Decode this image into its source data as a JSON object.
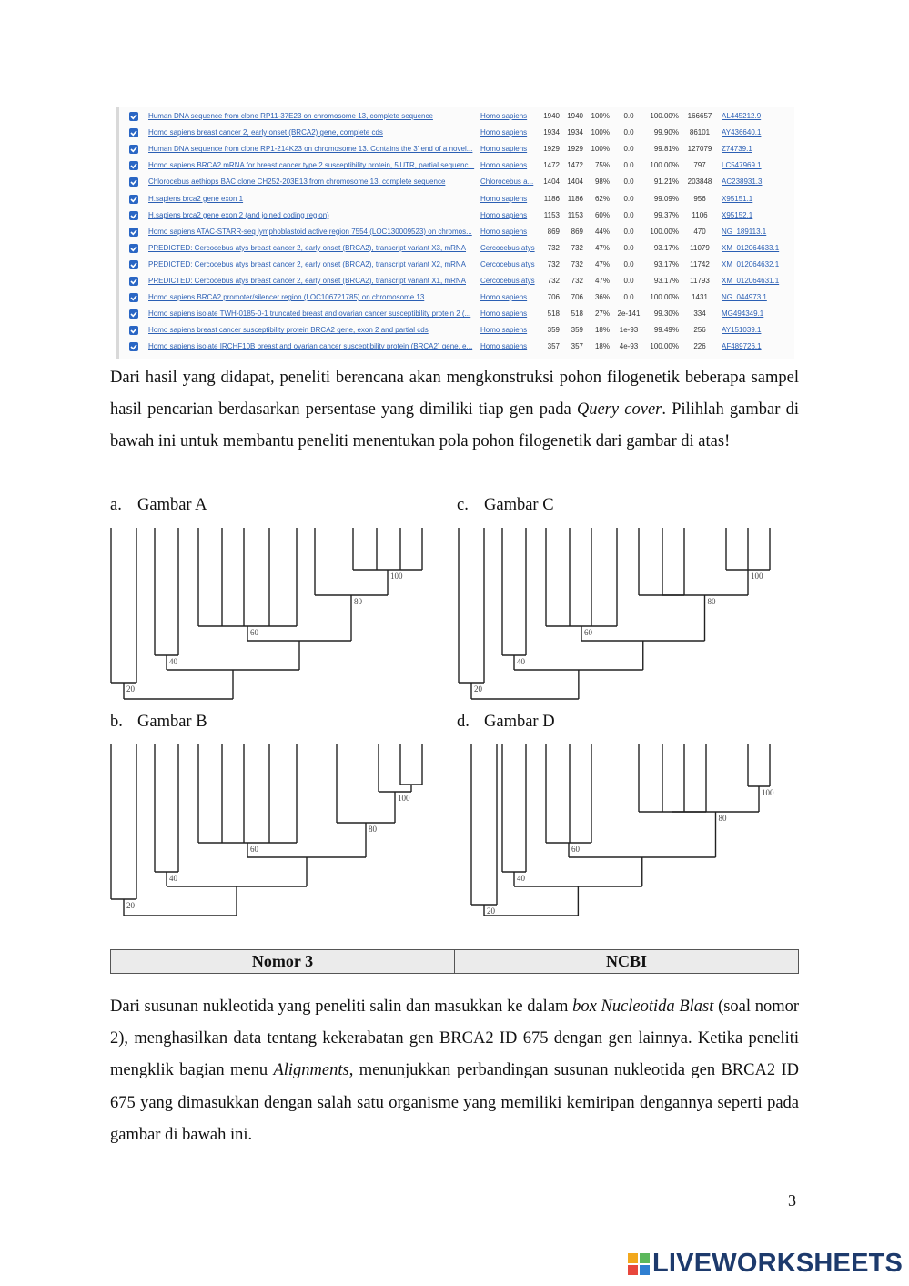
{
  "blast_table": {
    "rows": [
      [
        "Human DNA sequence from clone RP11-37E23 on chromosome 13, complete sequence",
        "Homo sapiens",
        "1940",
        "1940",
        "100%",
        "0.0",
        "100.00%",
        "166657",
        "AL445212.9"
      ],
      [
        "Homo sapiens breast cancer 2, early onset (BRCA2) gene, complete cds",
        "Homo sapiens",
        "1934",
        "1934",
        "100%",
        "0.0",
        "99.90%",
        "86101",
        "AY436640.1"
      ],
      [
        "Human DNA sequence from clone RP1-214K23 on chromosome 13. Contains the 3' end of a novel...",
        "Homo sapiens",
        "1929",
        "1929",
        "100%",
        "0.0",
        "99.81%",
        "127079",
        "Z74739.1"
      ],
      [
        "Homo sapiens BRCA2 mRNA for breast cancer type 2 susceptibility protein, 5'UTR, partial sequenc...",
        "Homo sapiens",
        "1472",
        "1472",
        "75%",
        "0.0",
        "100.00%",
        "797",
        "LC547969.1"
      ],
      [
        "Chlorocebus aethiops BAC clone CH252-203E13 from chromosome 13, complete sequence",
        "Chlorocebus a...",
        "1404",
        "1404",
        "98%",
        "0.0",
        "91.21%",
        "203848",
        "AC238931.3"
      ],
      [
        "H.sapiens brca2 gene exon 1",
        "Homo sapiens",
        "1186",
        "1186",
        "62%",
        "0.0",
        "99.09%",
        "956",
        "X95151.1"
      ],
      [
        "H.sapiens brca2 gene exon 2 (and joined coding region)",
        "Homo sapiens",
        "1153",
        "1153",
        "60%",
        "0.0",
        "99.37%",
        "1106",
        "X95152.1"
      ],
      [
        "Homo sapiens ATAC-STARR-seq lymphoblastoid active region 7554 (LOC130009523) on chromos...",
        "Homo sapiens",
        "869",
        "869",
        "44%",
        "0.0",
        "100.00%",
        "470",
        "NG_189113.1"
      ],
      [
        "PREDICTED: Cercocebus atys breast cancer 2, early onset (BRCA2), transcript variant X3, mRNA",
        "Cercocebus atys",
        "732",
        "732",
        "47%",
        "0.0",
        "93.17%",
        "11079",
        "XM_012064633.1"
      ],
      [
        "PREDICTED: Cercocebus atys breast cancer 2, early onset (BRCA2), transcript variant X2, mRNA",
        "Cercocebus atys",
        "732",
        "732",
        "47%",
        "0.0",
        "93.17%",
        "11742",
        "XM_012064632.1"
      ],
      [
        "PREDICTED: Cercocebus atys breast cancer 2, early onset (BRCA2), transcript variant X1, mRNA",
        "Cercocebus atys",
        "732",
        "732",
        "47%",
        "0.0",
        "93.17%",
        "11793",
        "XM_012064631.1"
      ],
      [
        "Homo sapiens BRCA2 promoter/silencer region (LOC106721785) on chromosome 13",
        "Homo sapiens",
        "706",
        "706",
        "36%",
        "0.0",
        "100.00%",
        "1431",
        "NG_044973.1"
      ],
      [
        "Homo sapiens isolate TWH-0185-0-1 truncated breast and ovarian cancer susceptibility protein 2 (...",
        "Homo sapiens",
        "518",
        "518",
        "27%",
        "2e-141",
        "99.30%",
        "334",
        "MG494349.1"
      ],
      [
        "Homo sapiens breast cancer susceptibility protein BRCA2 gene, exon 2 and partial cds",
        "Homo sapiens",
        "359",
        "359",
        "18%",
        "1e-93",
        "99.49%",
        "256",
        "AY151039.1"
      ],
      [
        "Homo sapiens isolate IRCHF10B breast and ovarian cancer susceptibility protein (BRCA2) gene, e...",
        "Homo sapiens",
        "357",
        "357",
        "18%",
        "4e-93",
        "100.00%",
        "226",
        "AF489726.1"
      ]
    ]
  },
  "paragraph_1": [
    "Dari hasil yang didapat, peneliti berencana akan mengkonstruksi pohon filogenetik beberapa sampel hasil pencarian berdasarkan persentase yang dimiliki tiap gen pada ",
    "Query cover",
    ". Pilihlah gambar di bawah ini untuk membantu peneliti menentukan pola pohon filogenetik dari gambar di atas!"
  ],
  "figures": [
    {
      "letter": "a.",
      "title": "Gambar A",
      "node_labels": [
        "100",
        "80",
        "60",
        "40",
        "20"
      ]
    },
    {
      "letter": "b.",
      "title": "Gambar B",
      "node_labels": [
        "100",
        "80",
        "60",
        "40",
        "20"
      ]
    },
    {
      "letter": "c.",
      "title": "Gambar C",
      "node_labels": [
        "100",
        "80",
        "60",
        "40",
        "20"
      ]
    },
    {
      "letter": "d.",
      "title": "Gambar D",
      "node_labels": [
        "100",
        "80",
        "60",
        "40",
        "20"
      ]
    }
  ],
  "section_table": {
    "cells": [
      "Nomor 3",
      "NCBI"
    ]
  },
  "paragraph_2": [
    "Dari susunan nukleotida yang peneliti salin dan masukkan ke dalam ",
    "box Nucleotida Blast",
    " (soal nomor 2), menghasilkan data tentang kekerabatan gen BRCA2 ID 675 dengan gen lainnya. Ketika peneliti mengklik bagian menu ",
    "Alignments",
    ", menunjukkan perbandingan susunan nukleotida gen BRCA2 ID 675 yang dimasukkan dengan salah satu organisme yang memiliki kemiripan dengannya seperti pada gambar di bawah ini."
  ],
  "page_number": "3",
  "logo": {
    "text": "LIVEWORKSHEETS"
  }
}
